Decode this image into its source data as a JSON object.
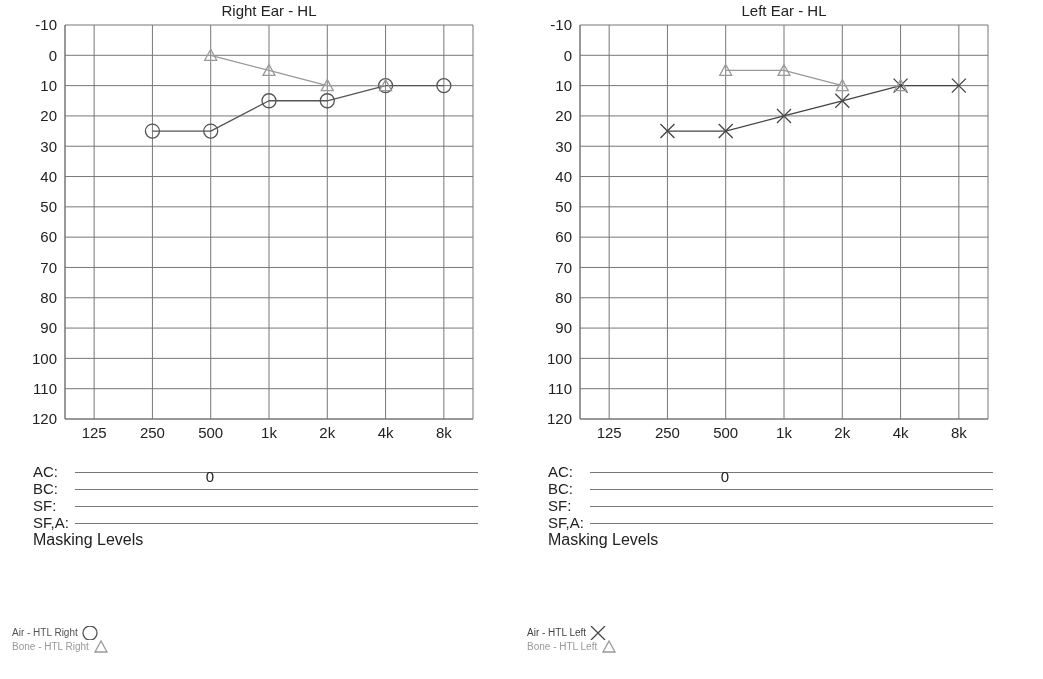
{
  "chart_data": [
    {
      "type": "line",
      "title": "Right Ear - HL",
      "categories": [
        "125",
        "250",
        "500",
        "1k",
        "2k",
        "4k",
        "8k"
      ],
      "ylim": [
        120,
        -10
      ],
      "yticks": [
        -10,
        0,
        10,
        20,
        30,
        40,
        50,
        60,
        70,
        80,
        90,
        100,
        110,
        120
      ],
      "grid": true,
      "legend": "bottom left",
      "series": [
        {
          "name": "Air - HTL Right",
          "color": "#555555",
          "marker": "circle",
          "values": [
            null,
            25,
            25,
            15,
            15,
            10,
            10
          ]
        },
        {
          "name": "Bone - HTL Right",
          "color": "#999999",
          "marker": "triangle",
          "values": [
            null,
            null,
            0,
            5,
            10,
            10,
            null
          ]
        }
      ],
      "annotations": [
        "AC:",
        "BC:",
        "SF:",
        "SF,A:",
        "Masking Levels",
        "0"
      ]
    },
    {
      "type": "line",
      "title": "Left Ear - HL",
      "categories": [
        "125",
        "250",
        "500",
        "1k",
        "2k",
        "4k",
        "8k"
      ],
      "ylim": [
        120,
        -10
      ],
      "yticks": [
        -10,
        0,
        10,
        20,
        30,
        40,
        50,
        60,
        70,
        80,
        90,
        100,
        110,
        120
      ],
      "grid": true,
      "legend": "bottom left",
      "series": [
        {
          "name": "Air - HTL Left",
          "color": "#444444",
          "marker": "cross",
          "values": [
            null,
            25,
            25,
            20,
            15,
            10,
            10
          ]
        },
        {
          "name": "Bone - HTL Left",
          "color": "#999999",
          "marker": "triangle",
          "values": [
            null,
            null,
            5,
            5,
            10,
            10,
            null
          ]
        }
      ],
      "annotations": [
        "AC:",
        "BC:",
        "SF:",
        "SF,A:",
        "Masking Levels",
        "0"
      ]
    }
  ]
}
